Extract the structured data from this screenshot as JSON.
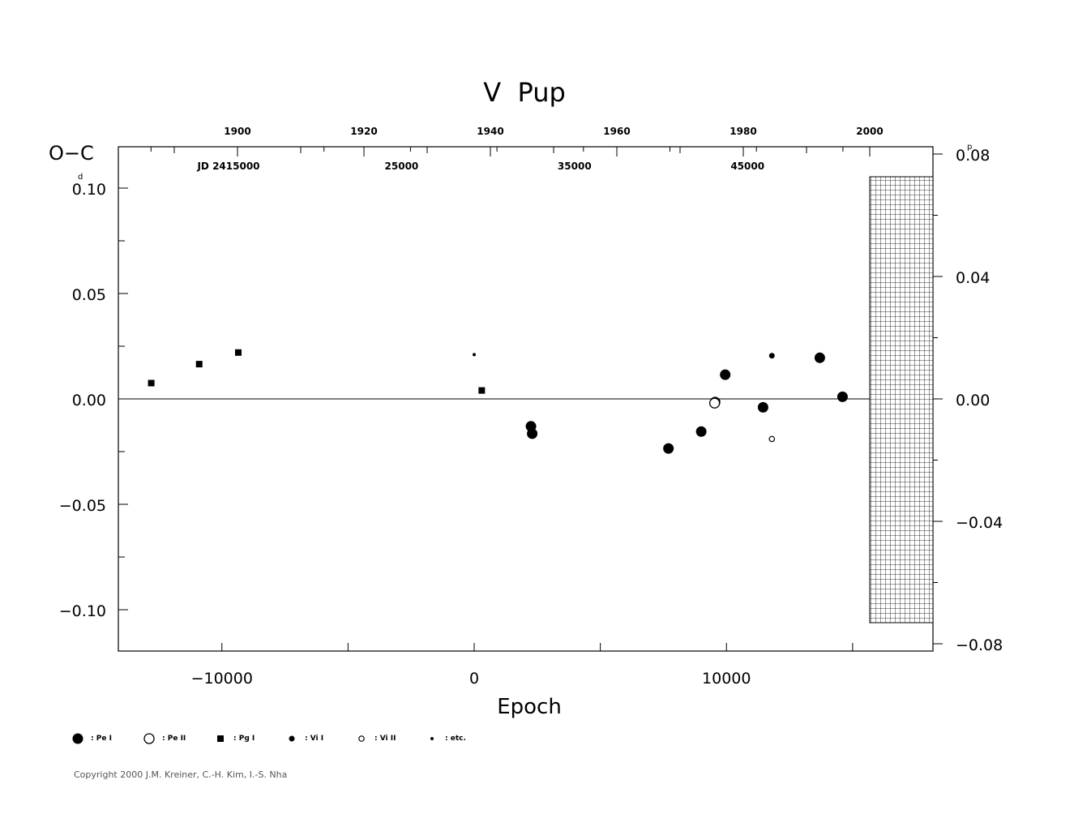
{
  "chart_data": {
    "type": "scatter",
    "title": "V  Pup",
    "ylabel": "O−C",
    "ylabel_unit": "d",
    "xlabel": "Epoch",
    "xlim": [
      -14000,
      18300
    ],
    "ylim": [
      -0.12,
      0.12
    ],
    "x_ticks": [
      -10000,
      0,
      10000
    ],
    "x_tick_labels": [
      "−10000",
      "0",
      "10000"
    ],
    "y_ticks": [
      0.1,
      0.05,
      0.0,
      -0.05,
      -0.1
    ],
    "y_tick_labels": [
      "0.10",
      "0.05",
      "0.00",
      "−0.05",
      "−0.10"
    ],
    "right_axis": {
      "unit": "p",
      "ticks": [
        0.08,
        0.04,
        0.0,
        -0.04,
        -0.08
      ],
      "tick_labels": [
        "0.08",
        "0.04",
        "0.00",
        "−0.04",
        "−0.08"
      ]
    },
    "top_year_ticks": [
      "1900",
      "1920",
      "1940",
      "1960",
      "1980",
      "2000"
    ],
    "top_jd_ticks": [
      "JD  2415000",
      "25000",
      "35000",
      "45000"
    ],
    "zero_line": true,
    "series": [
      {
        "name": "Pe I",
        "marker": "filled-circle-large",
        "points": [
          [
            2250,
            -0.013
          ],
          [
            2300,
            -0.0165
          ],
          [
            7700,
            -0.0235
          ],
          [
            9000,
            -0.0155
          ],
          [
            9550,
            -0.0015
          ],
          [
            9950,
            0.0115
          ],
          [
            11450,
            -0.004
          ],
          [
            13700,
            0.0195
          ],
          [
            14600,
            0.001
          ]
        ]
      },
      {
        "name": "Pe II",
        "marker": "open-circle-large",
        "points": [
          [
            9530,
            -0.002
          ]
        ]
      },
      {
        "name": "Pg I",
        "marker": "filled-square",
        "points": [
          [
            -12800,
            0.0075
          ],
          [
            -10900,
            0.0165
          ],
          [
            -9350,
            0.022
          ],
          [
            300,
            0.004
          ]
        ]
      },
      {
        "name": "Vi I",
        "marker": "filled-circle-small",
        "points": [
          [
            11800,
            0.0205
          ]
        ]
      },
      {
        "name": "Vi II",
        "marker": "open-circle-small",
        "points": [
          [
            11800,
            -0.019
          ]
        ]
      },
      {
        "name": "etc.",
        "marker": "tiny-dot",
        "points": [
          [
            0,
            0.021
          ]
        ]
      }
    ]
  },
  "legend": [
    {
      "label": ": Pe I",
      "marker": "filled-circle-large"
    },
    {
      "label": ": Pe II",
      "marker": "open-circle-large"
    },
    {
      "label": ": Pg I",
      "marker": "filled-square"
    },
    {
      "label": ": Vi I",
      "marker": "filled-circle-small"
    },
    {
      "label": ": Vi II",
      "marker": "open-circle-small"
    },
    {
      "label": ": etc.",
      "marker": "tiny-dot"
    }
  ],
  "copyright": "Copyright 2000 J.M. Kreiner, C.-H. Kim, I.-S. Nha"
}
